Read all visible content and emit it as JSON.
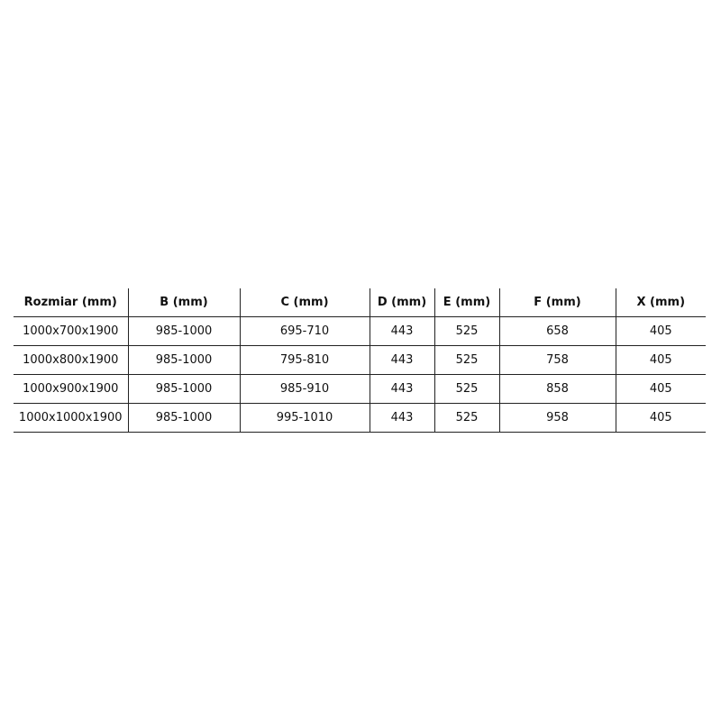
{
  "table": {
    "headers": [
      "Rozmiar (mm)",
      "B (mm)",
      "C (mm)",
      "D (mm)",
      "E (mm)",
      "F (mm)",
      "X (mm)"
    ],
    "rows": [
      [
        "1000x700x1900",
        "985-1000",
        "695-710",
        "443",
        "525",
        "658",
        "405"
      ],
      [
        "1000x800x1900",
        "985-1000",
        "795-810",
        "443",
        "525",
        "758",
        "405"
      ],
      [
        "1000x900x1900",
        "985-1000",
        "985-910",
        "443",
        "525",
        "858",
        "405"
      ],
      [
        "1000x1000x1900",
        "985-1000",
        "995-1010",
        "443",
        "525",
        "958",
        "405"
      ]
    ]
  }
}
